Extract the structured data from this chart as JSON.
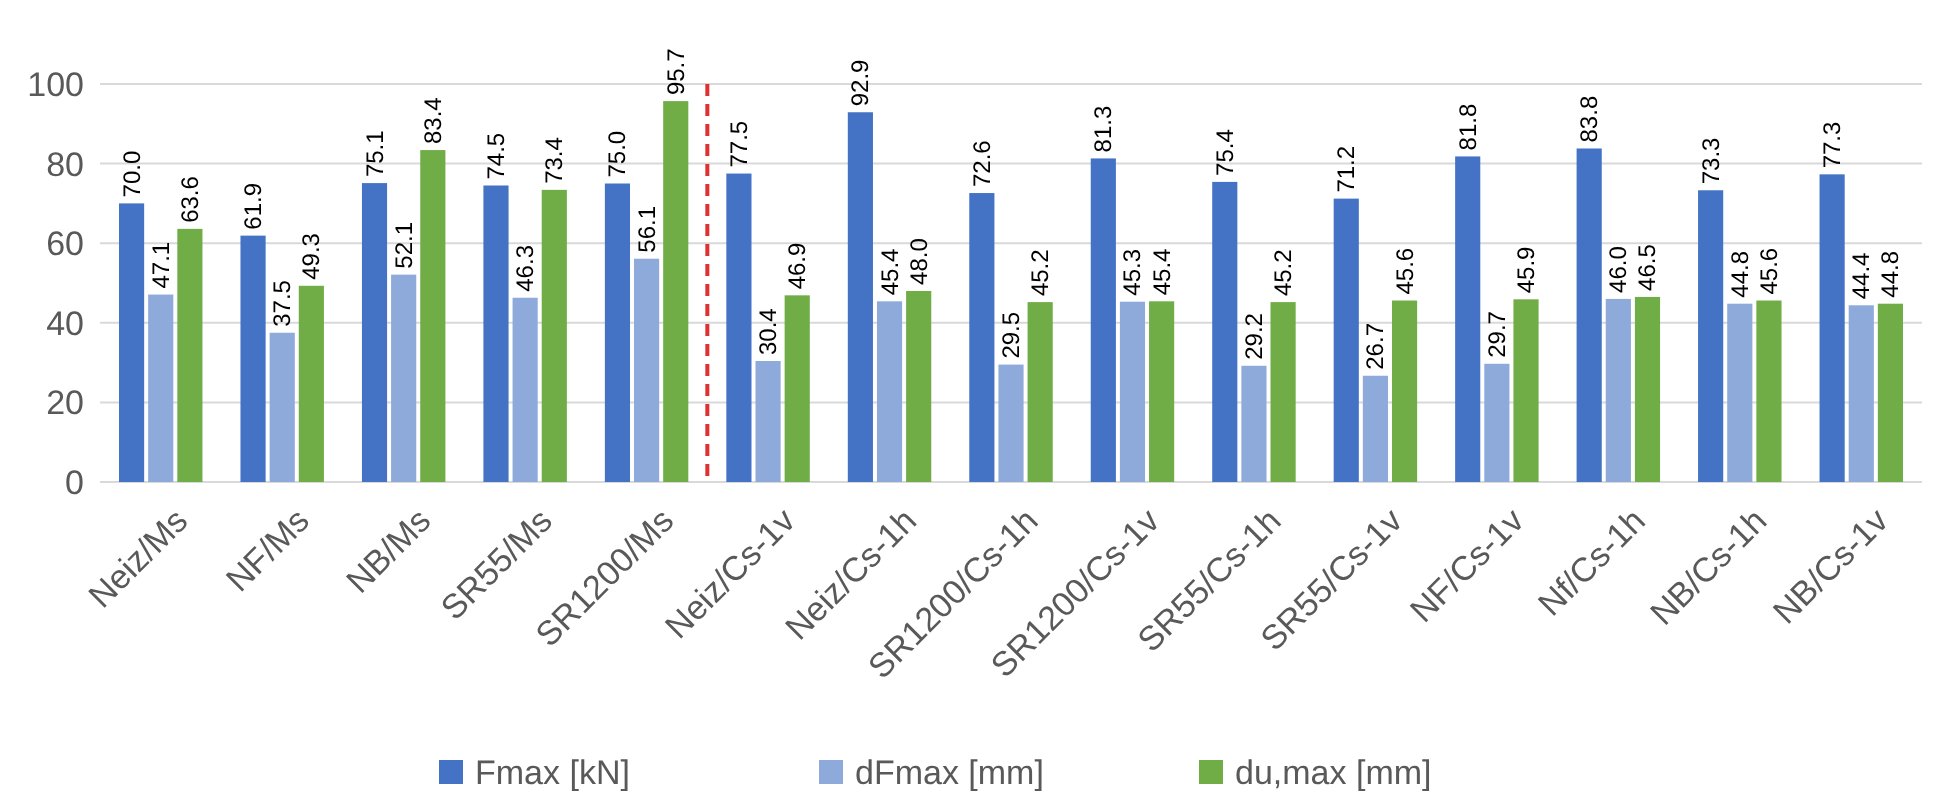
{
  "chart_data": {
    "type": "bar",
    "categories": [
      "Neiz/Ms",
      "NF/Ms",
      "NB/Ms",
      "SR55/Ms",
      "SR1200/Ms",
      "Neiz/Cs-1v",
      "Neiz/Cs-1h",
      "SR1200/Cs-1h",
      "SR1200/Cs-1v",
      "SR55/Cs-1h",
      "SR55/Cs-1v",
      "NF/Cs-1v",
      "Nf/Cs-1h",
      "NB/Cs-1h",
      "NB/Cs-1v"
    ],
    "series": [
      {
        "name": "Fmax [kN]",
        "color": "#4472c4",
        "values": [
          70.0,
          61.9,
          75.1,
          74.5,
          75.0,
          77.5,
          92.9,
          72.6,
          81.3,
          75.4,
          71.2,
          81.8,
          83.8,
          73.3,
          77.3
        ],
        "value_labels": [
          "70.0",
          "61.9",
          "75.1",
          "74.5",
          "75.0",
          "77.5",
          "92.9",
          "72.6",
          "81.3",
          "75.4",
          "71.2",
          "81.8",
          "83.8",
          "73.3",
          "77.3"
        ]
      },
      {
        "name": "dFmax [mm]",
        "color": "#8eaadb",
        "values": [
          47.1,
          37.5,
          52.1,
          46.3,
          56.1,
          30.4,
          45.4,
          29.5,
          45.3,
          29.2,
          26.7,
          29.7,
          46.0,
          44.8,
          44.4
        ],
        "value_labels": [
          "47.1",
          "37.5",
          "52.1",
          "46.3",
          "56.1",
          "30.4",
          "45.4",
          "29.5",
          "45.3",
          "29.2",
          "26.7",
          "29.7",
          "46.0",
          "44.8",
          "44.4"
        ]
      },
      {
        "name": "du,max [mm]",
        "color": "#70ad47",
        "values": [
          63.6,
          49.3,
          83.4,
          73.4,
          95.7,
          46.9,
          48.0,
          45.2,
          45.4,
          45.2,
          45.6,
          45.9,
          46.5,
          45.6,
          44.8
        ],
        "value_labels": [
          "63.6",
          "49.3",
          "83.4",
          "73.4",
          "95.7",
          "46.9",
          "48.0",
          "45.2",
          "45.4",
          "45.2",
          "45.6",
          "45.9",
          "46.5",
          "45.6",
          "44.8"
        ]
      }
    ],
    "ylim": [
      0,
      100
    ],
    "yticks": [
      0,
      20,
      40,
      60,
      80,
      100
    ],
    "grid": "y",
    "legend": "bottom"
  }
}
